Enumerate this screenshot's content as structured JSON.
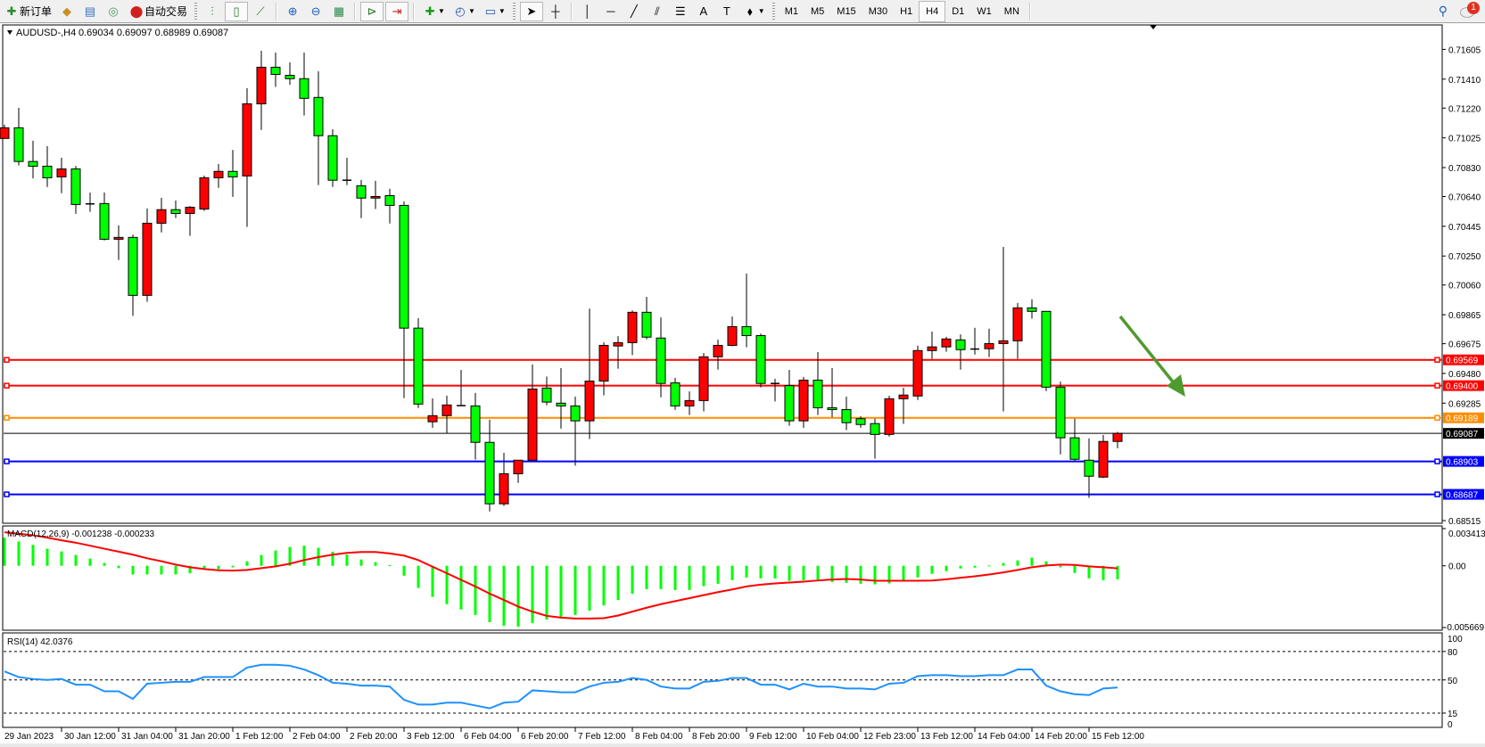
{
  "toolbar": {
    "new_order_label": "新订单",
    "auto_trading_label": "自动交易",
    "icons_left": [
      "gold-bars-icon",
      "history-center-icon",
      "signal-icon"
    ],
    "icons_chart": [
      "bar-chart-icon",
      "candlestick-icon",
      "line-chart-icon",
      "zoom-in-icon",
      "zoom-out-icon",
      "tile-windows-icon",
      "auto-scroll-icon",
      "chart-shift-icon",
      "indicators-icon",
      "periods-icon",
      "templates-icon"
    ],
    "icons_draw": [
      "cursor-icon",
      "crosshair-icon",
      "vertical-line-icon",
      "horizontal-line-icon",
      "trendline-icon",
      "fibonacci-icon",
      "fibonacci-fan-icon",
      "text-icon",
      "text-label-icon",
      "arrows-icon"
    ],
    "timeframes": [
      "M1",
      "M5",
      "M15",
      "M30",
      "H1",
      "H4",
      "D1",
      "W1",
      "MN"
    ],
    "selected_timeframe": "H4",
    "notification_count": "1"
  },
  "chart": {
    "symbol_label": "AUDUSD-,H4",
    "ohlc_label": "0.69034 0.69097 0.68989 0.69087",
    "colors": {
      "bull": "#ff0000",
      "bear": "#00ff00",
      "arrow": "#4f9a2f",
      "macd_hist": "#00ff00",
      "macd_signal": "#ff0000",
      "rsi": "#1e90ff"
    },
    "price_axis_labels": [
      "0.71605",
      "0.71410",
      "0.71220",
      "0.71025",
      "0.70830",
      "0.70640",
      "0.70445",
      "0.70250",
      "0.70060",
      "0.69865",
      "0.69675",
      "0.69480",
      "0.69285",
      "0.68515"
    ],
    "levels": [
      {
        "price": "0.69569",
        "color": "#ff0000"
      },
      {
        "price": "0.69400",
        "color": "#ff0000"
      },
      {
        "price": "0.69189",
        "color": "#ff8c00"
      },
      {
        "price": "0.69087",
        "color": "#000000"
      },
      {
        "price": "0.68903",
        "color": "#0000ff"
      },
      {
        "price": "0.68687",
        "color": "#0000ff"
      }
    ],
    "time_labels": [
      "29 Jan 2023",
      "30 Jan 12:00",
      "31 Jan 04:00",
      "31 Jan 20:00",
      "1 Feb 12:00",
      "2 Feb 04:00",
      "2 Feb 20:00",
      "3 Feb 12:00",
      "6 Feb 04:00",
      "6 Feb 20:00",
      "7 Feb 12:00",
      "8 Feb 04:00",
      "8 Feb 20:00",
      "9 Feb 12:00",
      "10 Feb 04:00",
      "12 Feb 23:00",
      "13 Feb 12:00",
      "14 Feb 04:00",
      "14 Feb 20:00",
      "15 Feb 12:00"
    ]
  },
  "chart_data": [
    {
      "type": "candlestick",
      "title": "AUDUSD-,H4",
      "ylim": [
        0.68515,
        0.71605
      ],
      "ohlc": [
        [
          0.71021,
          0.71111,
          0.71021,
          0.71091
        ],
        [
          0.71091,
          0.71222,
          0.70844,
          0.7087
        ],
        [
          0.7087,
          0.71005,
          0.70759,
          0.70839
        ],
        [
          0.70839,
          0.7097,
          0.70703,
          0.70763
        ],
        [
          0.70769,
          0.70894,
          0.70662,
          0.70821
        ],
        [
          0.70821,
          0.70841,
          0.70527,
          0.70588
        ],
        [
          0.70592,
          0.70666,
          0.7054,
          0.70592
        ],
        [
          0.70594,
          0.70666,
          0.70352,
          0.7036
        ],
        [
          0.7036,
          0.70451,
          0.70224,
          0.70372
        ],
        [
          0.70372,
          0.70391,
          0.69857,
          0.69992
        ],
        [
          0.69992,
          0.70562,
          0.6995,
          0.70465
        ],
        [
          0.70465,
          0.70632,
          0.70405,
          0.70554
        ],
        [
          0.70554,
          0.70614,
          0.70499,
          0.70529
        ],
        [
          0.70529,
          0.70578,
          0.70383,
          0.7057
        ],
        [
          0.70558,
          0.70777,
          0.70546,
          0.70763
        ],
        [
          0.70763,
          0.70854,
          0.70697,
          0.70805
        ],
        [
          0.70805,
          0.70946,
          0.70638,
          0.70769
        ],
        [
          0.70775,
          0.71351,
          0.70441,
          0.71248
        ],
        [
          0.71248,
          0.71596,
          0.71077,
          0.71488
        ],
        [
          0.71488,
          0.71584,
          0.71359,
          0.71441
        ],
        [
          0.71435,
          0.7152,
          0.71373,
          0.71413
        ],
        [
          0.71413,
          0.71584,
          0.71172,
          0.71284
        ],
        [
          0.7129,
          0.71461,
          0.70715,
          0.71039
        ],
        [
          0.71039,
          0.71081,
          0.70703,
          0.70747
        ],
        [
          0.70747,
          0.70894,
          0.70715,
          0.70747
        ],
        [
          0.70711,
          0.70749,
          0.70499,
          0.7063
        ],
        [
          0.7063,
          0.70743,
          0.70558,
          0.7064
        ],
        [
          0.70646,
          0.70691,
          0.70463,
          0.70582
        ],
        [
          0.70582,
          0.70608,
          0.69318,
          0.69777
        ],
        [
          0.69777,
          0.69843,
          0.69253,
          0.69279
        ],
        [
          0.69163,
          0.69316,
          0.69124,
          0.69203
        ],
        [
          0.69203,
          0.69334,
          0.69088,
          0.69273
        ],
        [
          0.69269,
          0.69503,
          0.69269,
          0.69269
        ],
        [
          0.69267,
          0.69352,
          0.68915,
          0.69028
        ],
        [
          0.69028,
          0.69177,
          0.68575,
          0.68625
        ],
        [
          0.68625,
          0.68959,
          0.68611,
          0.68822
        ],
        [
          0.68822,
          0.68911,
          0.68762,
          0.68911
        ],
        [
          0.68911,
          0.69539,
          0.68911,
          0.69378
        ],
        [
          0.69384,
          0.69459,
          0.69271,
          0.69292
        ],
        [
          0.69285,
          0.69515,
          0.69118,
          0.69267
        ],
        [
          0.69267,
          0.69328,
          0.68875,
          0.69169
        ],
        [
          0.69169,
          0.69905,
          0.6905,
          0.6943
        ],
        [
          0.6943,
          0.69684,
          0.69336,
          0.69664
        ],
        [
          0.6966,
          0.69724,
          0.69511,
          0.69682
        ],
        [
          0.69682,
          0.69893,
          0.696,
          0.69881
        ],
        [
          0.69881,
          0.69982,
          0.69704,
          0.69718
        ],
        [
          0.69712,
          0.69847,
          0.69324,
          0.69414
        ],
        [
          0.69418,
          0.69451,
          0.69241,
          0.69267
        ],
        [
          0.69267,
          0.69362,
          0.69207,
          0.69302
        ],
        [
          0.69302,
          0.69614,
          0.69231,
          0.69589
        ],
        [
          0.69589,
          0.69702,
          0.69505,
          0.69664
        ],
        [
          0.69664,
          0.69853,
          0.69658,
          0.69787
        ],
        [
          0.69787,
          0.70135,
          0.69652,
          0.69728
        ],
        [
          0.69728,
          0.69742,
          0.69388,
          0.69414
        ],
        [
          0.69414,
          0.69445,
          0.69296,
          0.69406
        ],
        [
          0.694,
          0.69503,
          0.69137,
          0.69169
        ],
        [
          0.69169,
          0.69457,
          0.69124,
          0.69436
        ],
        [
          0.69436,
          0.6962,
          0.69207,
          0.69255
        ],
        [
          0.69255,
          0.69515,
          0.69193,
          0.69243
        ],
        [
          0.69243,
          0.69328,
          0.69108,
          0.69157
        ],
        [
          0.69183,
          0.69199,
          0.69124,
          0.69145
        ],
        [
          0.69151,
          0.69183,
          0.68921,
          0.6908
        ],
        [
          0.6908,
          0.69334,
          0.69066,
          0.69314
        ],
        [
          0.69314,
          0.69386,
          0.69149,
          0.69338
        ],
        [
          0.69332,
          0.69662,
          0.69306,
          0.6963
        ],
        [
          0.6963,
          0.69754,
          0.69575,
          0.69654
        ],
        [
          0.69654,
          0.6972,
          0.69622,
          0.69706
        ],
        [
          0.697,
          0.69736,
          0.69505,
          0.69636
        ],
        [
          0.6964,
          0.69779,
          0.69604,
          0.6964
        ],
        [
          0.69642,
          0.69773,
          0.69587,
          0.69676
        ],
        [
          0.69676,
          0.7031,
          0.69231,
          0.69694
        ],
        [
          0.69694,
          0.69942,
          0.69575,
          0.6991
        ],
        [
          0.6991,
          0.69966,
          0.69839,
          0.69887
        ],
        [
          0.69887,
          0.69887,
          0.69364,
          0.6939
        ],
        [
          0.6939,
          0.69426,
          0.68949,
          0.69058
        ],
        [
          0.69058,
          0.69183,
          0.68907,
          0.68917
        ],
        [
          0.68911,
          0.69054,
          0.68665,
          0.68806
        ],
        [
          0.688,
          0.69076,
          0.68794,
          0.69034
        ],
        [
          0.69034,
          0.69097,
          0.68989,
          0.69087
        ]
      ]
    },
    {
      "type": "bar+line",
      "title": "MACD(12,26,9)",
      "values_label": "-0.001238 -0.000233",
      "ylim": [
        -0.005669,
        0.003413
      ],
      "axis_labels": [
        "0.003413",
        "0.00",
        "-0.005669"
      ],
      "histogram": [
        0.002585,
        0.002228,
        0.001925,
        0.001568,
        0.00132,
        0.00099,
        0.00066,
        0.000248,
        -0.00022,
        -0.000798,
        -0.000798,
        -0.000798,
        -0.000798,
        -0.000688,
        -0.000275,
        -0.000303,
        -0.000138,
        0.000413,
        0.00099,
        0.001403,
        0.001733,
        0.001843,
        0.00165,
        0.001293,
        0.001018,
        0.000578,
        0.00033,
        5.5e-05,
        -0.000908,
        -0.002035,
        -0.00286,
        -0.00352,
        -0.004015,
        -0.00451,
        -0.00517,
        -0.0055,
        -0.005583,
        -0.005253,
        -0.004923,
        -0.004703,
        -0.00451,
        -0.004125,
        -0.00363,
        -0.003135,
        -0.002558,
        -0.002145,
        -0.002145,
        -0.002228,
        -0.002228,
        -0.00187,
        -0.00165,
        -0.00132,
        -0.001073,
        -0.001155,
        -0.001155,
        -0.001375,
        -0.00132,
        -0.001265,
        -0.001485,
        -0.001568,
        -0.00165,
        -0.001705,
        -0.001623,
        -0.001348,
        -0.001073,
        -0.000743,
        -0.000495,
        -0.000248,
        -0.000165,
        2.8e-05,
        0.000248,
        0.000495,
        0.000743,
        0.000413,
        -0.000138,
        -0.00066,
        -0.001155,
        -0.00132,
        -0.001238
      ],
      "signal": [
        0.00308,
        0.002943,
        0.002805,
        0.002585,
        0.002338,
        0.002118,
        0.001843,
        0.001568,
        0.001293,
        0.001018,
        0.000688,
        0.000413,
        0.00011,
        -0.000138,
        -0.000303,
        -0.000413,
        -0.00044,
        -0.000385,
        -0.00022,
        -5.5e-05,
        0.000193,
        0.000523,
        0.000798,
        0.001018,
        0.001183,
        0.001265,
        0.001265,
        0.001128,
        0.000935,
        0.000523,
        -8.3e-05,
        -0.000688,
        -0.001293,
        -0.001898,
        -0.002558,
        -0.003135,
        -0.00374,
        -0.004208,
        -0.004593,
        -0.004758,
        -0.00484,
        -0.00484,
        -0.004813,
        -0.004565,
        -0.004208,
        -0.00385,
        -0.00352,
        -0.003245,
        -0.00297,
        -0.002695,
        -0.00242,
        -0.002173,
        -0.001898,
        -0.001733,
        -0.001623,
        -0.00154,
        -0.001458,
        -0.001348,
        -0.001265,
        -0.00121,
        -0.001265,
        -0.001375,
        -0.001375,
        -0.001375,
        -0.001375,
        -0.001348,
        -0.001238,
        -0.0011,
        -0.000963,
        -0.000798,
        -0.000605,
        -0.000385,
        -0.000138,
        2.8e-05,
        0.00011,
        8.3e-05,
        -5.5e-05,
        -0.000138,
        -0.000233
      ]
    },
    {
      "type": "line",
      "title": "RSI(14)",
      "value_label": "42.0376",
      "ylim": [
        0,
        100
      ],
      "levels": [
        80,
        50,
        15
      ],
      "axis_labels": [
        "100",
        "80",
        "50",
        "15",
        "0"
      ],
      "values": [
        59,
        53,
        51,
        50,
        51,
        45,
        45,
        38,
        38,
        30,
        46,
        47,
        48,
        48,
        53,
        53,
        53,
        63,
        66,
        66,
        65,
        61,
        55,
        47,
        46,
        44,
        44,
        43,
        29,
        24,
        24,
        26,
        26,
        23,
        20,
        26,
        27,
        39,
        38,
        37,
        37,
        43,
        47,
        48,
        52,
        50,
        43,
        41,
        41,
        48,
        49,
        52,
        52,
        45,
        45,
        40,
        46,
        43,
        43,
        41,
        41,
        40,
        46,
        47,
        54,
        55,
        55,
        54,
        54,
        55,
        55,
        61,
        61,
        44,
        38,
        35,
        34,
        41,
        42.0376
      ]
    }
  ]
}
